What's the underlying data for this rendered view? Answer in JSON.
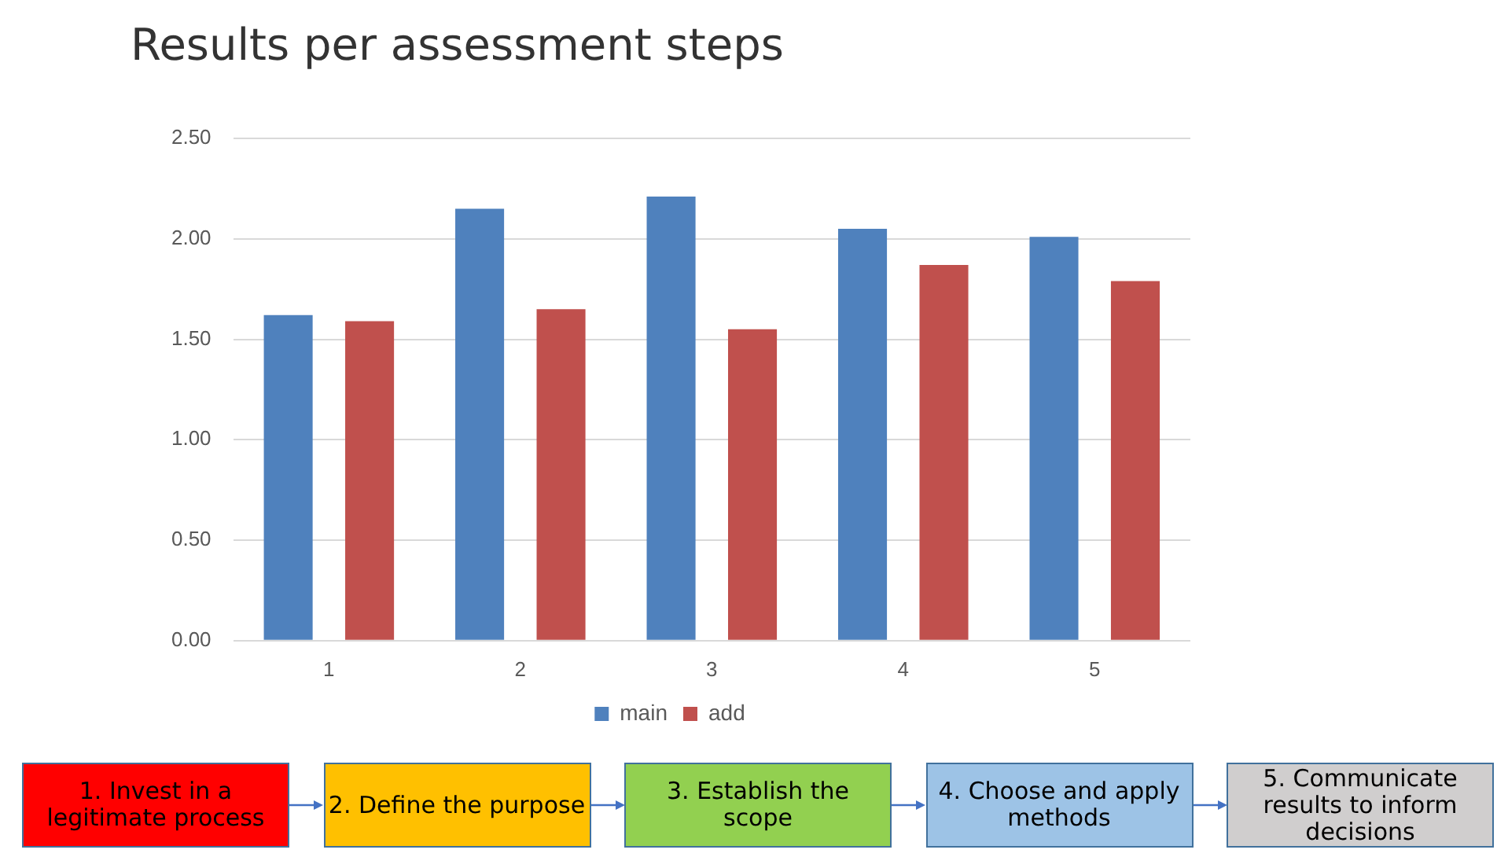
{
  "chart_data": {
    "type": "bar",
    "title": "Results per assessment steps",
    "categories": [
      "1",
      "2",
      "3",
      "4",
      "5"
    ],
    "series": [
      {
        "name": "main",
        "color": "#4f81bd",
        "values": [
          1.62,
          2.15,
          2.21,
          2.05,
          2.01
        ]
      },
      {
        "name": "add",
        "color": "#c0504d",
        "values": [
          1.59,
          1.65,
          1.55,
          1.87,
          1.79
        ]
      }
    ],
    "ylim": [
      0,
      2.5
    ],
    "yticks": [
      {
        "value": 0,
        "label": "0.00"
      },
      {
        "value": 0.5,
        "label": "0.50"
      },
      {
        "value": 1,
        "label": "1.00"
      },
      {
        "value": 1.5,
        "label": "1.50"
      },
      {
        "value": 2,
        "label": "2.00"
      },
      {
        "value": 2.5,
        "label": "2.50"
      }
    ],
    "grid": "y",
    "legend": "bottom",
    "annotations": [
      "1. Invest in a legitimate process",
      "2. Define the purpose",
      "3. Establish the scope",
      "4. Choose and apply methods",
      "5. Communicate results to inform decisions"
    ]
  }
}
